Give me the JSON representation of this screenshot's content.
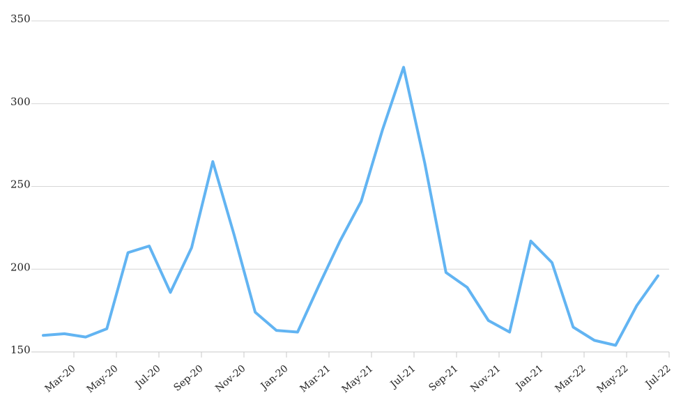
{
  "chart_data": {
    "type": "line",
    "x_tick_labels": [
      "Mar-20",
      "May-20",
      "Jul-20",
      "Sep-20",
      "Nov-20",
      "Jan-20",
      "Mar-21",
      "May-21",
      "Jul-21",
      "Sep-21",
      "Nov-21",
      "Jan-21",
      "Mar-22",
      "May-22",
      "Jul-22"
    ],
    "y_ticks": [
      150,
      200,
      250,
      300,
      350
    ],
    "ylim": [
      150,
      350
    ],
    "series": [
      {
        "color": "#62b4f2",
        "values": [
          160,
          161,
          159,
          164,
          210,
          214,
          186,
          213,
          265,
          221,
          174,
          163,
          162,
          190,
          217,
          241,
          284,
          322,
          264,
          198,
          189,
          169,
          162,
          217,
          204,
          165,
          157,
          154,
          178,
          196
        ]
      }
    ],
    "grid": true,
    "legend": "none"
  }
}
